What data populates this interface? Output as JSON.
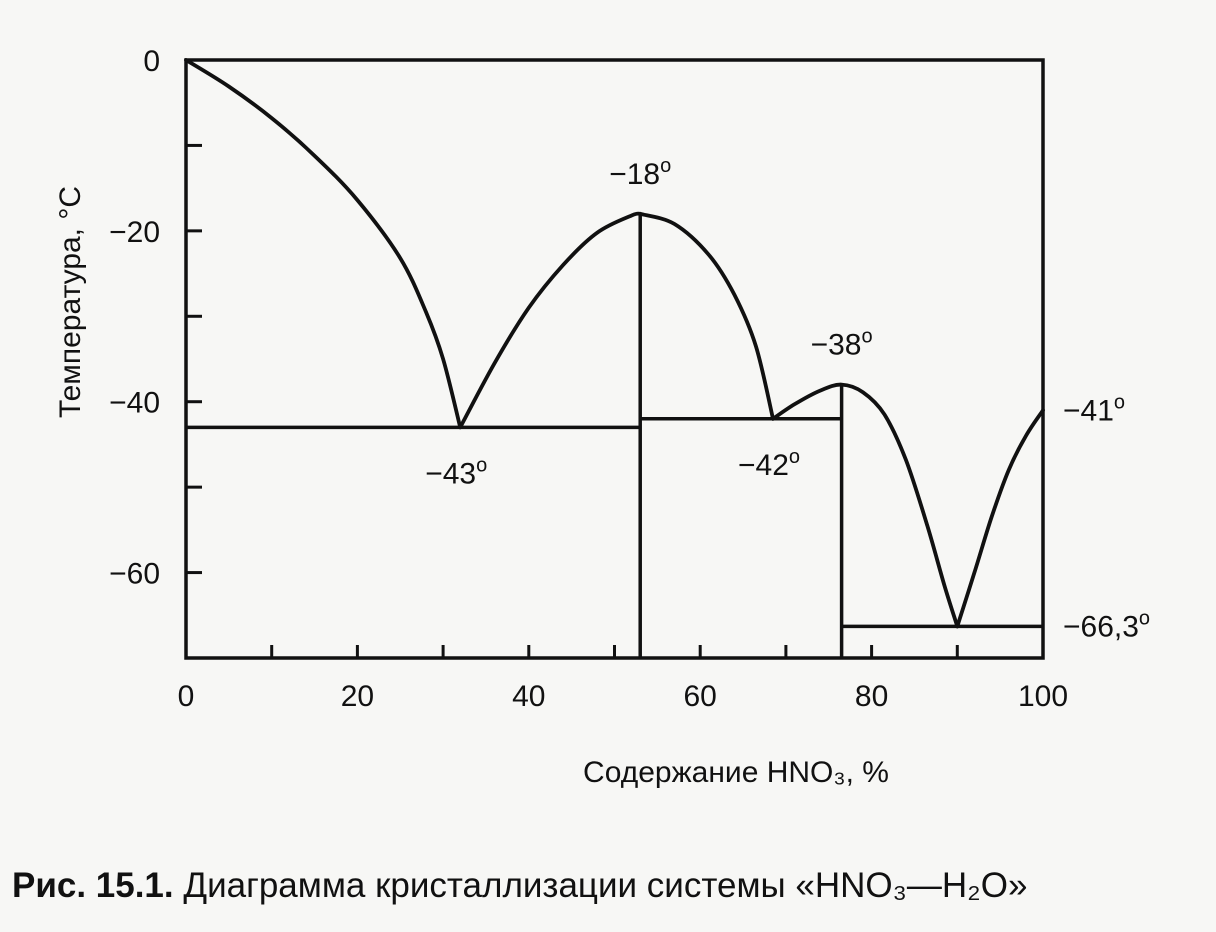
{
  "caption": {
    "number": "Рис. 15.1.",
    "text": "Диаграмма кристаллизации системы «HNO₃—H₂O»"
  },
  "chart_data": {
    "type": "line",
    "xlabel": "Содержание HNO₃, %",
    "ylabel": "Температура, °C",
    "xlim": [
      0,
      100
    ],
    "ylim": [
      -70,
      0
    ],
    "x_ticks": [
      0,
      20,
      40,
      60,
      80,
      100
    ],
    "x_minor_ticks": [
      10,
      30,
      50,
      70,
      90
    ],
    "y_ticks": [
      0,
      -20,
      -40,
      -60
    ],
    "y_minor_ticks": [
      -10,
      -30,
      -50
    ],
    "grid": false,
    "series": [
      {
        "values": [
          [
            0,
            0
          ],
          [
            5,
            -3.1
          ],
          [
            10,
            -6.8
          ],
          [
            15,
            -11.2
          ],
          [
            20,
            -16.4
          ],
          [
            25,
            -23.2
          ],
          [
            28,
            -29.5
          ],
          [
            30,
            -35
          ],
          [
            32,
            -43
          ]
        ]
      },
      {
        "values": [
          [
            32,
            -43
          ],
          [
            36,
            -35.5
          ],
          [
            40,
            -29
          ],
          [
            44,
            -24
          ],
          [
            48,
            -20.2
          ],
          [
            52,
            -18.2
          ],
          [
            53,
            -18
          ]
        ]
      },
      {
        "values": [
          [
            53,
            -18
          ],
          [
            57,
            -19.2
          ],
          [
            61,
            -22.8
          ],
          [
            64,
            -27.5
          ],
          [
            66.5,
            -33.5
          ],
          [
            68.5,
            -42
          ]
        ]
      },
      {
        "values": [
          [
            68.5,
            -42
          ],
          [
            71,
            -40.3
          ],
          [
            74,
            -38.7
          ],
          [
            76.5,
            -38
          ],
          [
            79,
            -38.9
          ],
          [
            81.5,
            -41.5
          ],
          [
            84,
            -46.8
          ],
          [
            86.5,
            -54.5
          ],
          [
            88.5,
            -61.5
          ],
          [
            90,
            -66.3
          ]
        ]
      },
      {
        "values": [
          [
            90,
            -66.3
          ],
          [
            92,
            -60
          ],
          [
            94,
            -53.5
          ],
          [
            96,
            -48
          ],
          [
            98,
            -44
          ],
          [
            100,
            -41
          ]
        ]
      }
    ],
    "eutectic_lines": [
      {
        "x1": 0,
        "x2": 53,
        "y": -43
      },
      {
        "x1": 53,
        "x2": 76.5,
        "y": -42
      },
      {
        "x1": 76.5,
        "x2": 100,
        "y": -66.3
      }
    ],
    "vertical_lines": [
      {
        "x": 53,
        "y1": -18,
        "y2": -70
      },
      {
        "x": 76.5,
        "y1": -38,
        "y2": -70
      }
    ],
    "annotations": [
      {
        "text": "−18",
        "x": 53,
        "y": -18,
        "anchor": "above"
      },
      {
        "text": "−43",
        "x": 32,
        "y": -43,
        "anchor": "below"
      },
      {
        "text": "−42",
        "x": 68.5,
        "y": -42,
        "anchor": "below"
      },
      {
        "text": "−38",
        "x": 76.5,
        "y": -38,
        "anchor": "above"
      },
      {
        "text": "−41",
        "x": 100,
        "y": -41,
        "anchor": "right"
      },
      {
        "text": "−66,3",
        "x": 100,
        "y": -66.3,
        "anchor": "right"
      }
    ]
  }
}
